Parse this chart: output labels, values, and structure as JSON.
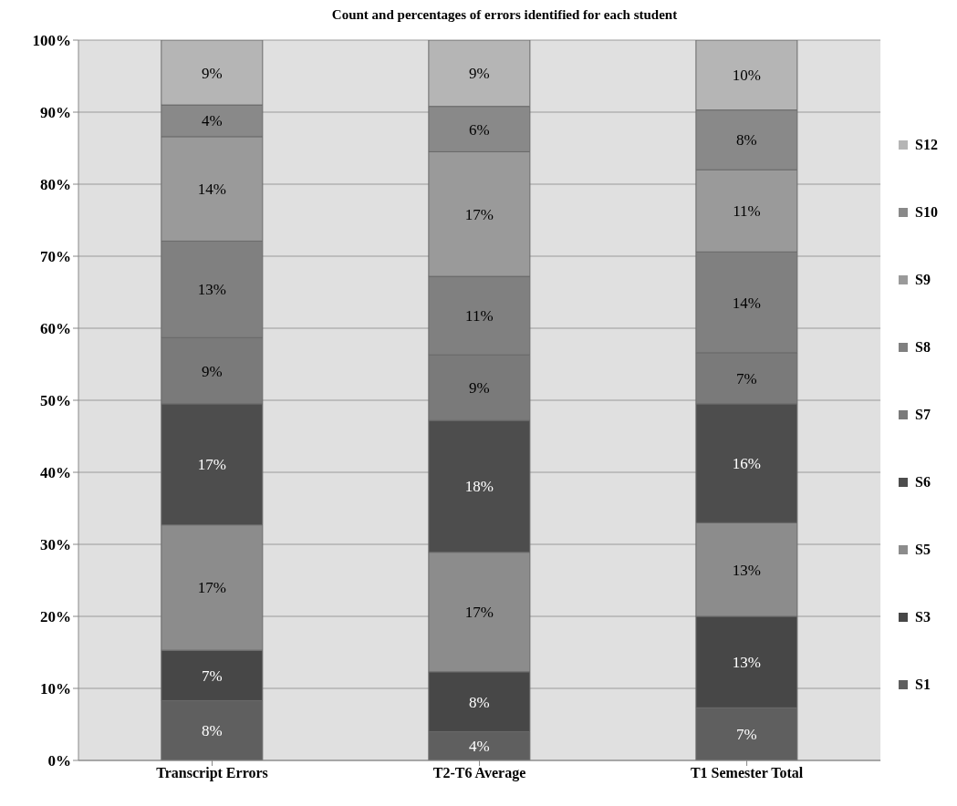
{
  "chart_data": {
    "type": "bar",
    "title": "Count and percentages of errors identified for each student",
    "stacked": true,
    "categories": [
      "Transcript Errors",
      "T2-T6 Average",
      "T1 Semester Total"
    ],
    "series": [
      {
        "name": "S1",
        "color": "#5f5f5f",
        "values": [
          8.3,
          4,
          7.3
        ],
        "value_labels": [
          "8%",
          "4%",
          "7%"
        ]
      },
      {
        "name": "S3",
        "color": "#474747",
        "values": [
          7,
          8.3,
          12.7
        ],
        "value_labels": [
          "7%",
          "8%",
          "13%"
        ]
      },
      {
        "name": "S5",
        "color": "#8c8c8c",
        "values": [
          17.4,
          16.6,
          13
        ],
        "value_labels": [
          "17%",
          "17%",
          "13%"
        ]
      },
      {
        "name": "S6",
        "color": "#4d4d4d",
        "values": [
          16.8,
          18.3,
          16.5
        ],
        "value_labels": [
          "17%",
          "18%",
          "16%"
        ]
      },
      {
        "name": "S7",
        "color": "#7a7a7a",
        "values": [
          9.2,
          9.1,
          7.1
        ],
        "value_labels": [
          "9%",
          "9%",
          "7%"
        ]
      },
      {
        "name": "S8",
        "color": "#808080",
        "values": [
          13.4,
          10.9,
          14
        ],
        "value_labels": [
          "13%",
          "11%",
          "14%"
        ]
      },
      {
        "name": "S9",
        "color": "#9a9a9a",
        "values": [
          14.5,
          17.3,
          11.4
        ],
        "value_labels": [
          "14%",
          "17%",
          "11%"
        ]
      },
      {
        "name": "S10",
        "color": "#898989",
        "values": [
          4.4,
          6.3,
          8.3
        ],
        "value_labels": [
          "4%",
          "6%",
          "8%"
        ]
      },
      {
        "name": "S12",
        "color": "#b5b5b5",
        "values": [
          9,
          9.2,
          9.7
        ],
        "value_labels": [
          "9%",
          "9%",
          "10%"
        ]
      }
    ],
    "ylim": [
      0,
      100
    ],
    "yticks": [
      {
        "value": 0,
        "label": "0%"
      },
      {
        "value": 10,
        "label": "10%"
      },
      {
        "value": 20,
        "label": "20%"
      },
      {
        "value": 30,
        "label": "30%"
      },
      {
        "value": 40,
        "label": "40%"
      },
      {
        "value": 50,
        "label": "50%"
      },
      {
        "value": 60,
        "label": "60%"
      },
      {
        "value": 70,
        "label": "70%"
      },
      {
        "value": 80,
        "label": "80%"
      },
      {
        "value": 90,
        "label": "90%"
      },
      {
        "value": 100,
        "label": "100%"
      }
    ],
    "grid": "y",
    "legend": "right"
  }
}
